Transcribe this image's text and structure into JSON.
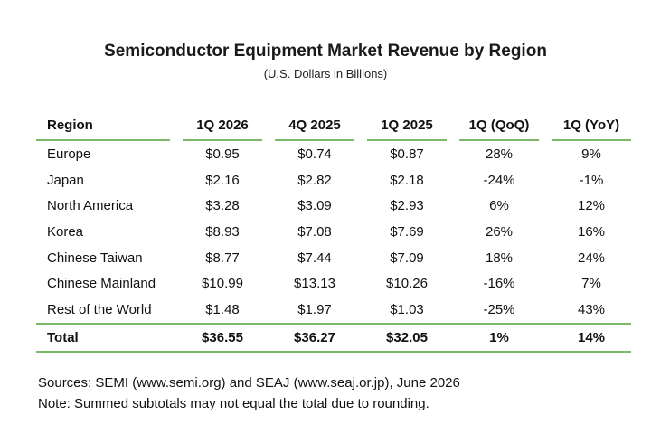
{
  "title": "Semiconductor Equipment Market Revenue by Region",
  "subtitle": "(U.S. Dollars in Billions)",
  "table": {
    "headers": [
      "Region",
      "1Q 2026",
      "4Q 2025",
      "1Q 2025",
      "1Q (QoQ)",
      "1Q (YoY)"
    ],
    "rows": [
      [
        "Europe",
        "$0.95",
        "$0.74",
        "$0.87",
        "28%",
        "9%"
      ],
      [
        "Japan",
        "$2.16",
        "$2.82",
        "$2.18",
        "-24%",
        "-1%"
      ],
      [
        "North America",
        "$3.28",
        "$3.09",
        "$2.93",
        "6%",
        "12%"
      ],
      [
        "Korea",
        "$8.93",
        "$7.08",
        "$7.69",
        "26%",
        "16%"
      ],
      [
        "Chinese Taiwan",
        "$8.77",
        "$7.44",
        "$7.09",
        "18%",
        "24%"
      ],
      [
        "Chinese Mainland",
        "$10.99",
        "$13.13",
        "$10.26",
        "-16%",
        "7%"
      ],
      [
        "Rest of the World",
        "$1.48",
        "$1.97",
        "$1.03",
        "-25%",
        "43%"
      ]
    ],
    "total": [
      "Total",
      "$36.55",
      "$36.27",
      "$32.05",
      "1%",
      "14%"
    ],
    "accent_color": "#7ab86a"
  },
  "notes": {
    "sources": "Sources: SEMI (www.semi.org) and SEAJ (www.seaj.or.jp), June 2026",
    "note": "Note: Summed subtotals may not equal the total due to rounding."
  }
}
